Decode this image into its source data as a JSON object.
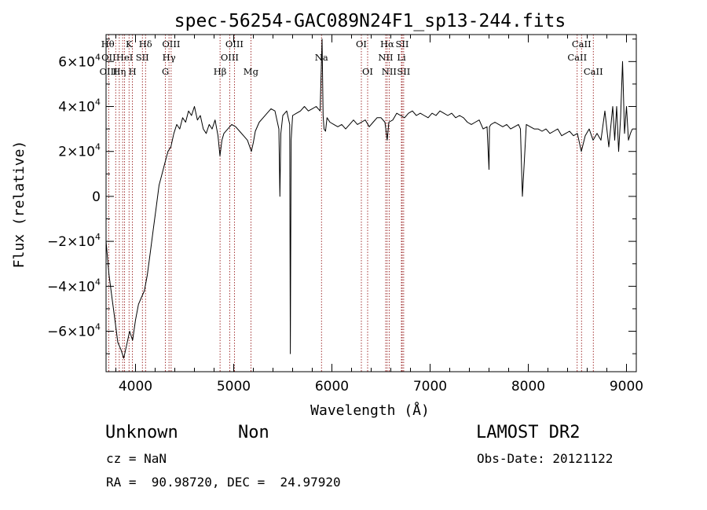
{
  "chart_data": {
    "type": "line",
    "title": "spec-56254-GAC089N24F1_sp13-244.fits",
    "xlabel": "Wavelength (Å)",
    "ylabel": "Flux (relative)",
    "xlim": [
      3700,
      9100
    ],
    "ylim": [
      -78000,
      72000
    ],
    "xticks": [
      4000,
      5000,
      6000,
      7000,
      8000,
      9000
    ],
    "xtick_labels": [
      "4000",
      "5000",
      "6000",
      "7000",
      "8000",
      "9000"
    ],
    "yticks": [
      -60000,
      -40000,
      -20000,
      0,
      20000,
      40000,
      60000
    ],
    "ytick_labels": [
      {
        "m": "−6×10",
        "e": "4"
      },
      {
        "m": "−4×10",
        "e": "4"
      },
      {
        "m": "−2×10",
        "e": "4"
      },
      {
        "m": "0",
        "e": ""
      },
      {
        "m": "2×10",
        "e": "4"
      },
      {
        "m": "4×10",
        "e": "4"
      },
      {
        "m": "6×10",
        "e": "4"
      }
    ],
    "grid": false,
    "series": [
      {
        "x": [
          3700,
          3730,
          3760,
          3790,
          3820,
          3850,
          3880,
          3910,
          3940,
          3970,
          4000,
          4030,
          4060,
          4090,
          4120,
          4150,
          4180,
          4210,
          4240,
          4270,
          4300,
          4330,
          4360,
          4390,
          4420,
          4450,
          4480,
          4510,
          4540,
          4570,
          4600,
          4630,
          4660,
          4690,
          4720,
          4750,
          4780,
          4810,
          4840,
          4860,
          4880,
          4900,
          4940,
          4980,
          5020,
          5060,
          5100,
          5140,
          5180,
          5200,
          5220,
          5260,
          5300,
          5340,
          5380,
          5420,
          5460,
          5470,
          5480,
          5500,
          5540,
          5570,
          5577,
          5585,
          5600,
          5640,
          5680,
          5720,
          5760,
          5800,
          5840,
          5880,
          5900,
          5910,
          5920,
          5935,
          5950,
          5980,
          6020,
          6060,
          6100,
          6140,
          6180,
          6220,
          6260,
          6300,
          6340,
          6380,
          6420,
          6460,
          6500,
          6540,
          6563,
          6580,
          6620,
          6660,
          6700,
          6740,
          6780,
          6820,
          6860,
          6900,
          6940,
          6980,
          7020,
          7060,
          7100,
          7140,
          7180,
          7220,
          7260,
          7300,
          7340,
          7380,
          7420,
          7460,
          7500,
          7540,
          7580,
          7600,
          7605,
          7620,
          7660,
          7700,
          7740,
          7780,
          7820,
          7860,
          7900,
          7920,
          7940,
          7980,
          8020,
          8060,
          8100,
          8140,
          8180,
          8220,
          8260,
          8300,
          8340,
          8380,
          8420,
          8460,
          8500,
          8540,
          8580,
          8620,
          8660,
          8700,
          8740,
          8780,
          8820,
          8860,
          8880,
          8900,
          8920,
          8940,
          8960,
          8980,
          9000,
          9020,
          9040,
          9060
        ],
        "y": [
          -20000,
          -35000,
          -45000,
          -55000,
          -65000,
          -68000,
          -72000,
          -66000,
          -60000,
          -64000,
          -55000,
          -48000,
          -45000,
          -42000,
          -35000,
          -25000,
          -15000,
          -5000,
          5000,
          10000,
          15000,
          20000,
          22000,
          28000,
          32000,
          30000,
          35000,
          33000,
          38000,
          36000,
          40000,
          34000,
          36000,
          30000,
          28000,
          32000,
          30000,
          34000,
          27000,
          18000,
          25000,
          28000,
          30000,
          32000,
          31000,
          29000,
          27000,
          25000,
          20000,
          24000,
          29000,
          33000,
          35000,
          37000,
          39000,
          38000,
          30000,
          0,
          28000,
          36000,
          38000,
          32000,
          -70000,
          25000,
          36000,
          37000,
          38000,
          40000,
          38000,
          39000,
          40000,
          38000,
          70000,
          36000,
          30000,
          29000,
          35000,
          33000,
          32000,
          31000,
          32000,
          30000,
          32000,
          34000,
          32000,
          33000,
          34000,
          31000,
          33000,
          35000,
          35000,
          33000,
          25000,
          33000,
          34000,
          37000,
          36000,
          35000,
          37000,
          38000,
          36000,
          37000,
          36000,
          35000,
          37000,
          36000,
          38000,
          37000,
          36000,
          37000,
          35000,
          36000,
          35000,
          33000,
          32000,
          33000,
          34000,
          30000,
          31000,
          12000,
          31000,
          32000,
          33000,
          32000,
          31000,
          32000,
          30000,
          31000,
          32000,
          30000,
          0,
          32000,
          31000,
          30000,
          30000,
          29000,
          30000,
          28000,
          29000,
          30000,
          27000,
          28000,
          29000,
          27000,
          28000,
          20000,
          27000,
          30000,
          25000,
          28000,
          25000,
          38000,
          22000,
          40000,
          25000,
          40000,
          20000,
          35000,
          60000,
          28000,
          40000,
          25000,
          28000,
          30000
        ]
      }
    ],
    "lines": [
      {
        "name": "Hθ",
        "x": 3798,
        "row": 0,
        "dx": -10
      },
      {
        "name": "OII",
        "x": 3727,
        "row": 1,
        "dx": 0
      },
      {
        "name": "OIII",
        "x": 3869,
        "row": 2,
        "dx": -18
      },
      {
        "name": "K",
        "x": 3934,
        "row": 0,
        "dx": 0
      },
      {
        "name": "HeI",
        "x": 3889,
        "row": 1,
        "dx": 0
      },
      {
        "name": "Hη",
        "x": 3835,
        "row": 2,
        "dx": 0
      },
      {
        "name": "H",
        "x": 3969,
        "row": 2,
        "dx": 0
      },
      {
        "name": "SII",
        "x": 4070,
        "row": 1,
        "dx": 0
      },
      {
        "name": "Hδ",
        "x": 4102,
        "row": 0,
        "dx": 0
      },
      {
        "name": "OIII",
        "x": 4363,
        "row": 0,
        "dx": 0
      },
      {
        "name": "Hγ",
        "x": 4341,
        "row": 1,
        "dx": 0
      },
      {
        "name": "G",
        "x": 4305,
        "row": 2,
        "dx": 0
      },
      {
        "name": "Hβ",
        "x": 4861,
        "row": 2,
        "dx": 0
      },
      {
        "name": "OIII",
        "x": 5007,
        "row": 0,
        "dx": 0
      },
      {
        "name": "OIII",
        "x": 4959,
        "row": 1,
        "dx": 0
      },
      {
        "name": "Mg",
        "x": 5175,
        "row": 2,
        "dx": 0
      },
      {
        "name": "Na",
        "x": 5894,
        "row": 1,
        "dx": 0
      },
      {
        "name": "OI",
        "x": 6300,
        "row": 0,
        "dx": 0
      },
      {
        "name": "OI",
        "x": 6364,
        "row": 2,
        "dx": 0
      },
      {
        "name": "Hα",
        "x": 6563,
        "row": 0,
        "dx": 0
      },
      {
        "name": "NII",
        "x": 6548,
        "row": 1,
        "dx": 0
      },
      {
        "name": "NII",
        "x": 6583,
        "row": 2,
        "dx": 0
      },
      {
        "name": "SII",
        "x": 6716,
        "row": 0,
        "dx": 0
      },
      {
        "name": "Li",
        "x": 6708,
        "row": 1,
        "dx": 0
      },
      {
        "name": "SII",
        "x": 6731,
        "row": 2,
        "dx": 0
      },
      {
        "name": "CaII",
        "x": 8542,
        "row": 0,
        "dx": 0
      },
      {
        "name": "CaII",
        "x": 8498,
        "row": 1,
        "dx": 0
      },
      {
        "name": "CaII",
        "x": 8662,
        "row": 2,
        "dx": 0
      }
    ]
  },
  "info": {
    "object_type": "Unknown",
    "subclass": "Non",
    "survey": "LAMOST DR2",
    "cz": "cz = NaN",
    "obs_date": "Obs-Date: 20121122",
    "coords": "RA =  90.98720, DEC =  24.97920"
  },
  "colors": {
    "spectrum": "#000000",
    "line_markers": "#8b0000",
    "background": "#ffffff"
  }
}
